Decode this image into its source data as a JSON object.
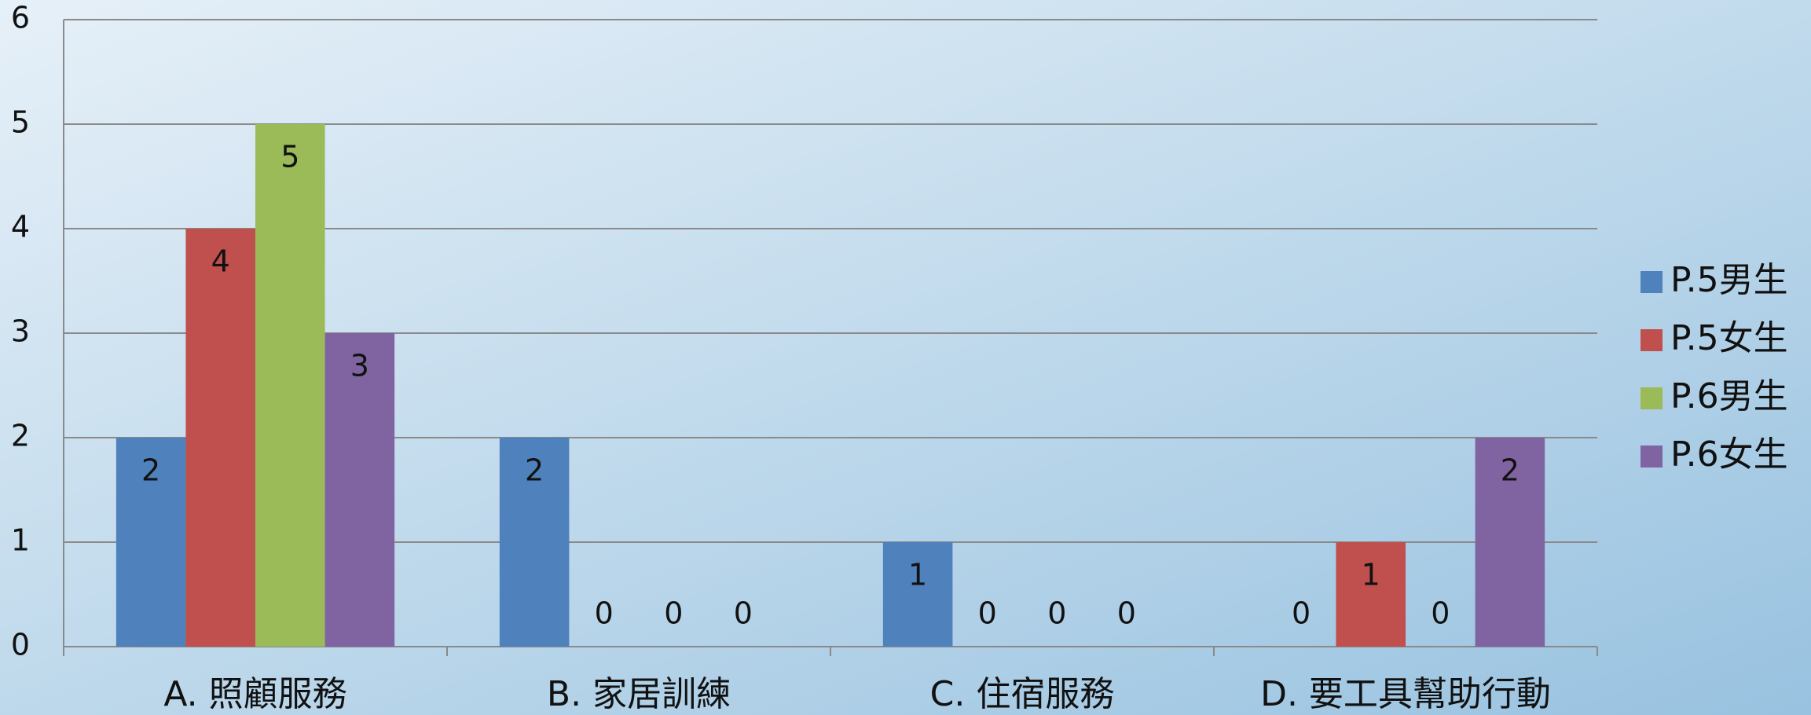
{
  "chart_data": {
    "type": "bar",
    "categories": [
      "A. 照顧服務",
      "B. 家居訓練",
      "C. 住宿服務",
      "D. 要工具幫助行動"
    ],
    "series": [
      {
        "name": "P.5男生",
        "color": "#4f81bd",
        "values": [
          2,
          2,
          1,
          0
        ]
      },
      {
        "name": "P.5女生",
        "color": "#c0504d",
        "values": [
          4,
          0,
          0,
          1
        ]
      },
      {
        "name": "P.6男生",
        "color": "#9bbb59",
        "values": [
          5,
          0,
          0,
          0
        ]
      },
      {
        "name": "P.6女生",
        "color": "#8064a2",
        "values": [
          3,
          0,
          0,
          2
        ]
      }
    ],
    "ylim": [
      0,
      6
    ],
    "yticks": [
      0,
      1,
      2,
      3,
      4,
      5,
      6
    ],
    "grid": true,
    "legend": "right"
  }
}
